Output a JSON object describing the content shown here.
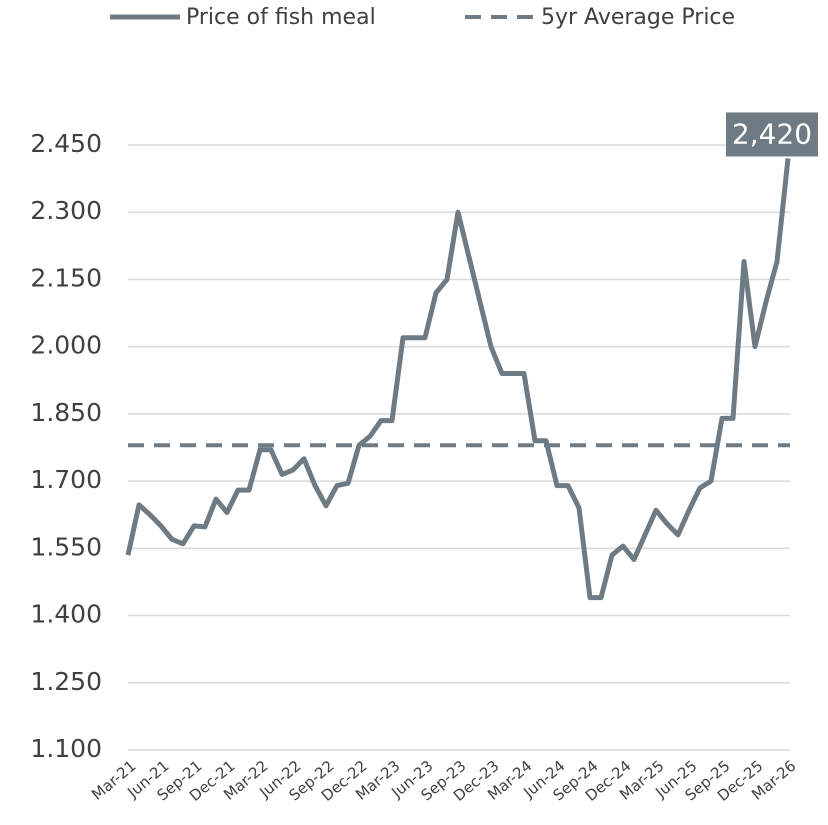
{
  "chart_data": {
    "type": "line",
    "categories": [
      "Mar-21",
      null,
      null,
      "Jun-21",
      null,
      null,
      "Sep-21",
      null,
      null,
      "Dec-21",
      null,
      null,
      "Mar-22",
      null,
      null,
      "Jun-22",
      null,
      null,
      "Sep-22",
      null,
      null,
      "Dec-22",
      null,
      null,
      "Mar-23",
      null,
      null,
      "Jun-23",
      null,
      null,
      "Sep-23",
      null,
      null,
      "Dec-23",
      null,
      null,
      "Mar-24",
      null,
      null,
      "Jun-24",
      null,
      null,
      "Sep-24",
      null,
      null,
      "Dec-24",
      null,
      null,
      "Mar-25",
      null,
      null,
      "Jun-25",
      null,
      null,
      "Sep-25",
      null,
      null,
      "Dec-25",
      null,
      null,
      "Mar-26"
    ],
    "series": [
      {
        "name": "Price of fish meal",
        "color": "#6f7b84",
        "values": [
          1535,
          1647,
          1625,
          1600,
          1570,
          1560,
          1600,
          1598,
          1660,
          1630,
          1680,
          1680,
          1770,
          1770,
          1715,
          1725,
          1750,
          1690,
          1645,
          1690,
          1695,
          1780,
          1800,
          1835,
          1835,
          2020,
          2020,
          2020,
          2120,
          2150,
          2300,
          2200,
          2100,
          2000,
          1940,
          1940,
          1940,
          1790,
          1790,
          1690,
          1690,
          1640,
          1440,
          1440,
          1535,
          1555,
          1525,
          1580,
          1635,
          1605,
          1580,
          1635,
          1685,
          1700,
          1840,
          1840,
          2190,
          2000,
          2100,
          2190,
          2420
        ],
        "value_labels": [
          null,
          null,
          null,
          null,
          null,
          null,
          null,
          null,
          null,
          null,
          null,
          null,
          null,
          null,
          null,
          null,
          null,
          null,
          null,
          null,
          null,
          null,
          null,
          null,
          null,
          null,
          null,
          null,
          null,
          null,
          null,
          null,
          null,
          null,
          null,
          null,
          null,
          null,
          null,
          null,
          null,
          null,
          null,
          null,
          null,
          null,
          null,
          null,
          null,
          null,
          null,
          null,
          null,
          null,
          null,
          null,
          null,
          null,
          null,
          null,
          "2,420"
        ]
      }
    ],
    "average_line": {
      "name": "5yr Average Price",
      "value": 1780,
      "color": "#6f7b84",
      "dashed": true
    },
    "ylim": [
      1100,
      2450
    ],
    "yticks": [
      {
        "value": 1100,
        "label": "1.100"
      },
      {
        "value": 1250,
        "label": "1.250"
      },
      {
        "value": 1400,
        "label": "1.400"
      },
      {
        "value": 1550,
        "label": "1.550"
      },
      {
        "value": 1700,
        "label": "1.700"
      },
      {
        "value": 1850,
        "label": "1.850"
      },
      {
        "value": 2000,
        "label": "2.000"
      },
      {
        "value": 2150,
        "label": "2.150"
      },
      {
        "value": 2300,
        "label": "2.300"
      },
      {
        "value": 2450,
        "label": "2.450"
      }
    ],
    "grid": true,
    "legend": "top"
  }
}
